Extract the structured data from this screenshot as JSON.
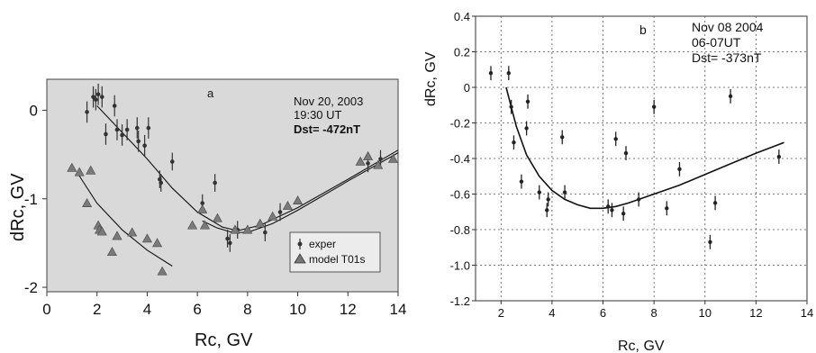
{
  "chart_data": [
    {
      "type": "scatter",
      "panel_label": "a",
      "title": "",
      "annotation": [
        "Nov 20, 2003",
        "19:30 UT",
        "Dst= -472nT"
      ],
      "xlabel": "Rc, GV",
      "ylabel": "dRc, GV",
      "xlim": [
        0,
        14
      ],
      "ylim": [
        -2.05,
        0.35
      ],
      "xticks": [
        "0",
        "2",
        "4",
        "6",
        "8",
        "10",
        "12",
        "14"
      ],
      "yticks": [
        "0",
        "-1",
        "-2"
      ],
      "grid": false,
      "legend_position": "bottom-right",
      "legend": [
        "exper",
        "model T01s"
      ],
      "series": [
        {
          "name": "exper",
          "marker": "point-errorbar",
          "x": [
            1.6,
            1.85,
            1.95,
            2.05,
            2.2,
            2.35,
            2.7,
            2.8,
            3.0,
            3.2,
            3.6,
            3.65,
            3.9,
            4.05,
            4.5,
            4.55,
            5.0,
            6.2,
            6.7,
            7.2,
            7.3,
            7.6,
            8.7,
            9.3,
            12.8,
            13.3
          ],
          "y": [
            -0.02,
            0.15,
            0.12,
            0.18,
            0.15,
            -0.27,
            0.05,
            -0.22,
            -0.28,
            -0.22,
            -0.2,
            -0.35,
            -0.4,
            -0.2,
            -0.78,
            -0.82,
            -0.58,
            -1.05,
            -0.82,
            -1.45,
            -1.5,
            -1.35,
            -1.38,
            -1.15,
            -0.6,
            -0.55
          ],
          "err": [
            0.12,
            0.12,
            0.12,
            0.12,
            0.12,
            0.12,
            0.12,
            0.12,
            0.12,
            0.12,
            0.12,
            0.12,
            0.12,
            0.12,
            0.1,
            0.1,
            0.1,
            0.1,
            0.1,
            0.1,
            0.1,
            0.1,
            0.1,
            0.1,
            0.1,
            0.1
          ]
        },
        {
          "name": "model T01s",
          "marker": "triangle",
          "x": [
            1.0,
            1.3,
            1.6,
            1.75,
            2.05,
            2.1,
            2.2,
            2.6,
            2.8,
            3.4,
            4.0,
            4.4,
            4.6,
            5.8,
            6.2,
            6.3,
            6.8,
            7.5,
            8.0,
            8.5,
            9.0,
            9.6,
            10.0,
            12.5,
            12.8,
            13.2,
            13.8
          ],
          "y": [
            -0.65,
            -0.7,
            -1.05,
            -0.68,
            -1.3,
            -1.35,
            -1.37,
            -1.6,
            -1.42,
            -1.38,
            -1.45,
            -1.5,
            -1.82,
            -1.3,
            -1.12,
            -1.3,
            -1.22,
            -1.35,
            -1.35,
            -1.28,
            -1.2,
            -1.08,
            -1.02,
            -0.58,
            -0.52,
            -0.62,
            -0.55
          ]
        }
      ],
      "curves": [
        {
          "x": [
            2.0,
            3.0,
            4.0,
            5.0,
            6.0,
            7.0,
            7.6,
            8.5,
            10.0,
            12.0,
            14.0
          ],
          "y": [
            0.05,
            -0.25,
            -0.55,
            -0.88,
            -1.15,
            -1.32,
            -1.36,
            -1.3,
            -1.1,
            -0.78,
            -0.45
          ]
        },
        {
          "x": [
            6.2,
            6.8,
            7.4,
            8.0,
            9.0,
            10.0,
            12.0,
            14.0
          ],
          "y": [
            -1.25,
            -1.33,
            -1.38,
            -1.38,
            -1.28,
            -1.13,
            -0.8,
            -0.48
          ]
        },
        {
          "x": [
            1.2,
            2.0,
            3.0,
            4.0,
            5.0
          ],
          "y": [
            -0.7,
            -1.05,
            -1.35,
            -1.58,
            -1.76
          ]
        }
      ]
    },
    {
      "type": "scatter",
      "panel_label": "b",
      "title": "",
      "annotation": [
        "Nov 08 2004",
        "06-07UT",
        "Dst= -373nT"
      ],
      "xlabel": "Rc, GV",
      "ylabel": "dRc, GV",
      "xlim": [
        1,
        14
      ],
      "ylim": [
        -1.2,
        0.4
      ],
      "xticks": [
        "2",
        "4",
        "6",
        "8",
        "10",
        "12",
        "14"
      ],
      "yticks": [
        "0.4",
        "0.2",
        "0",
        "-0.2",
        "-0.4",
        "-0.6",
        "-0.8",
        "-1.0",
        "-1.2"
      ],
      "grid": true,
      "series": [
        {
          "name": "",
          "marker": "point-errorbar",
          "x": [
            1.6,
            2.3,
            2.4,
            2.5,
            2.8,
            3.0,
            3.05,
            3.5,
            3.8,
            3.85,
            4.4,
            4.5,
            6.2,
            6.35,
            6.5,
            6.8,
            6.9,
            7.4,
            8.0,
            8.5,
            9.0,
            10.2,
            10.4,
            11.0,
            12.9
          ],
          "y": [
            0.08,
            0.08,
            -0.11,
            -0.31,
            -0.53,
            -0.23,
            -0.08,
            -0.59,
            -0.69,
            -0.63,
            -0.28,
            -0.59,
            -0.67,
            -0.69,
            -0.29,
            -0.71,
            -0.37,
            -0.63,
            -0.11,
            -0.68,
            -0.46,
            -0.87,
            -0.65,
            -0.05,
            -0.39
          ],
          "err": [
            0.04,
            0.04,
            0.04,
            0.04,
            0.04,
            0.04,
            0.04,
            0.04,
            0.04,
            0.04,
            0.04,
            0.04,
            0.04,
            0.04,
            0.04,
            0.04,
            0.04,
            0.04,
            0.04,
            0.04,
            0.04,
            0.04,
            0.04,
            0.04,
            0.04
          ]
        }
      ],
      "curves": [
        {
          "x": [
            2.2,
            2.6,
            3.0,
            3.5,
            4.0,
            4.5,
            5.0,
            5.5,
            6.0,
            6.5,
            7.0,
            8.0,
            9.0,
            10.0,
            11.0,
            12.0,
            13.1
          ],
          "y": [
            0.0,
            -0.22,
            -0.38,
            -0.5,
            -0.58,
            -0.63,
            -0.66,
            -0.68,
            -0.68,
            -0.67,
            -0.65,
            -0.6,
            -0.55,
            -0.49,
            -0.43,
            -0.37,
            -0.31
          ]
        }
      ]
    }
  ]
}
